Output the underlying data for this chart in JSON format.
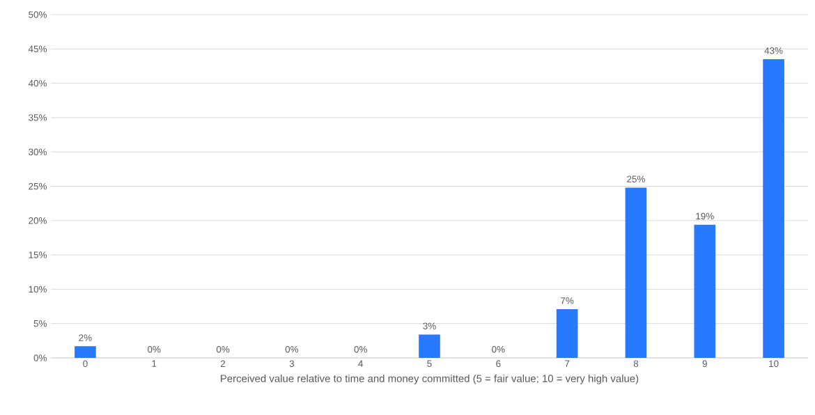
{
  "chart_data": {
    "type": "bar",
    "xlabel": "Perceived value relative to time and money committed (5 = fair value; 10 = very high value)",
    "categories": [
      "0",
      "1",
      "2",
      "3",
      "4",
      "5",
      "6",
      "7",
      "8",
      "9",
      "10"
    ],
    "values": [
      1.7,
      0,
      0,
      0,
      0,
      3.4,
      0,
      7.1,
      24.8,
      19.4,
      43.5
    ],
    "value_labels": [
      "2%",
      "0%",
      "0%",
      "0%",
      "0%",
      "3%",
      "0%",
      "7%",
      "25%",
      "19%",
      "43%"
    ],
    "color": "#2979ff",
    "ylim": [
      0,
      50
    ],
    "yticks": [
      {
        "value": 0,
        "label": "0%"
      },
      {
        "value": 5,
        "label": "5%"
      },
      {
        "value": 10,
        "label": "10%"
      },
      {
        "value": 15,
        "label": "15%"
      },
      {
        "value": 20,
        "label": "20%"
      },
      {
        "value": 25,
        "label": "25%"
      },
      {
        "value": 30,
        "label": "30%"
      },
      {
        "value": 35,
        "label": "35%"
      },
      {
        "value": 40,
        "label": "40%"
      },
      {
        "value": 45,
        "label": "45%"
      },
      {
        "value": 50,
        "label": "50%"
      }
    ],
    "grid": "y"
  }
}
